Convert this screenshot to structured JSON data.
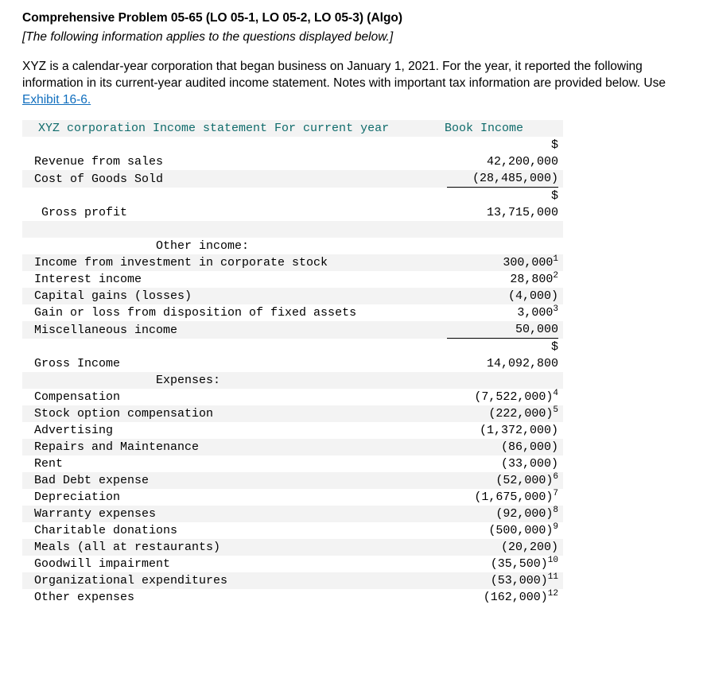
{
  "title": "Comprehensive Problem 05-65 (LO 05-1, LO 05-2, LO 05-3) (Algo)",
  "subtitle": "[The following information applies to the questions displayed below.]",
  "intro_part1": "XYZ is a calendar-year corporation that began business on January 1, 2021. For the year, it reported the following information in its current-year audited income statement. Notes with important tax information are provided below. Use ",
  "exhibit_link_text": "Exhibit 16-6.",
  "statement": {
    "header_left": "XYZ corporation Income statement For current year",
    "header_right": "Book Income",
    "rows": [
      {
        "band": false,
        "label": " Revenue from sales",
        "value": "42,200,000",
        "pre_dollar": true,
        "sup": ""
      },
      {
        "band": true,
        "label": " Cost of Goods Sold",
        "value": "(28,485,000)",
        "pre_dollar": false,
        "sup": "",
        "underline": true
      },
      {
        "band": false,
        "label": "  Gross profit",
        "value": "13,715,000",
        "pre_dollar": true,
        "sup": ""
      },
      {
        "band": true,
        "label": "",
        "value": "",
        "pre_dollar": false,
        "sup": ""
      },
      {
        "band": false,
        "label": "                  Other income:",
        "value": "",
        "pre_dollar": false,
        "sup": ""
      },
      {
        "band": true,
        "label": " Income from investment in corporate stock",
        "value": "300,000",
        "pre_dollar": false,
        "sup": "1"
      },
      {
        "band": false,
        "label": " Interest income",
        "value": "28,800",
        "pre_dollar": false,
        "sup": "2"
      },
      {
        "band": true,
        "label": " Capital gains (losses)",
        "value": "(4,000)",
        "pre_dollar": false,
        "sup": ""
      },
      {
        "band": false,
        "label": " Gain or loss from disposition of fixed assets",
        "value": "3,000",
        "pre_dollar": false,
        "sup": "3"
      },
      {
        "band": true,
        "label": " Miscellaneous income",
        "value": "50,000",
        "pre_dollar": false,
        "sup": "",
        "underline": true
      },
      {
        "band": false,
        "label": " Gross Income",
        "value": "14,092,800",
        "pre_dollar": true,
        "sup": ""
      },
      {
        "band": true,
        "label": "                  Expenses:",
        "value": "",
        "pre_dollar": false,
        "sup": ""
      },
      {
        "band": false,
        "label": " Compensation",
        "value": "(7,522,000)",
        "pre_dollar": false,
        "sup": "4"
      },
      {
        "band": true,
        "label": " Stock option compensation",
        "value": "(222,000)",
        "pre_dollar": false,
        "sup": "5"
      },
      {
        "band": false,
        "label": " Advertising",
        "value": "(1,372,000)",
        "pre_dollar": false,
        "sup": ""
      },
      {
        "band": true,
        "label": " Repairs and Maintenance",
        "value": "(86,000)",
        "pre_dollar": false,
        "sup": ""
      },
      {
        "band": false,
        "label": " Rent",
        "value": "(33,000)",
        "pre_dollar": false,
        "sup": ""
      },
      {
        "band": true,
        "label": " Bad Debt expense",
        "value": "(52,000)",
        "pre_dollar": false,
        "sup": "6"
      },
      {
        "band": false,
        "label": " Depreciation",
        "value": "(1,675,000)",
        "pre_dollar": false,
        "sup": "7"
      },
      {
        "band": true,
        "label": " Warranty expenses",
        "value": "(92,000)",
        "pre_dollar": false,
        "sup": "8"
      },
      {
        "band": false,
        "label": " Charitable donations",
        "value": "(500,000)",
        "pre_dollar": false,
        "sup": "9"
      },
      {
        "band": true,
        "label": " Meals (all at restaurants)",
        "value": "(20,200)",
        "pre_dollar": false,
        "sup": ""
      },
      {
        "band": false,
        "label": " Goodwill impairment",
        "value": "(35,500)",
        "pre_dollar": false,
        "sup": "10"
      },
      {
        "band": true,
        "label": " Organizational expenditures",
        "value": "(53,000)",
        "pre_dollar": false,
        "sup": "11"
      },
      {
        "band": false,
        "label": " Other expenses",
        "value": "(162,000)",
        "pre_dollar": false,
        "sup": "12"
      }
    ]
  },
  "colors": {
    "header_text": "#0f6b6b",
    "band_bg": "#f3f3f3",
    "link": "#106ebe",
    "underline": "#000000"
  }
}
